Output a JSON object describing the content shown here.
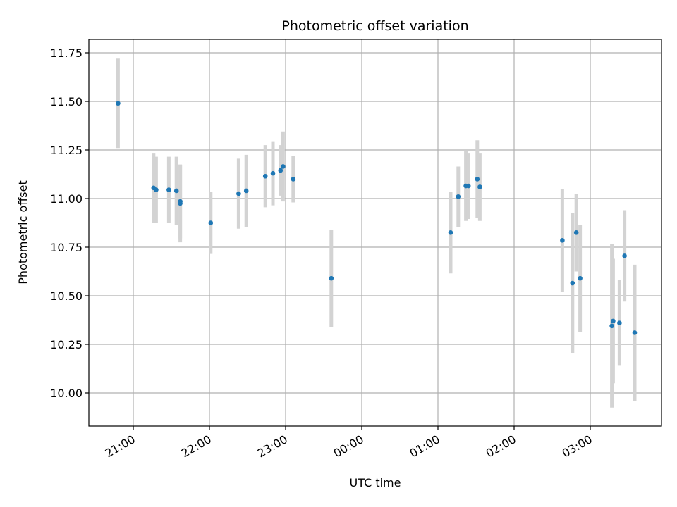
{
  "chart_data": {
    "type": "scatter",
    "title": "Photometric offset variation",
    "xlabel": "UTC time",
    "ylabel": "Photometric offset",
    "x_tick_labels": [
      "21:00",
      "22:00",
      "23:00",
      "00:00",
      "01:00",
      "02:00",
      "03:00"
    ],
    "y_tick_labels": [
      "10.00",
      "10.25",
      "10.50",
      "10.75",
      "11.00",
      "11.25",
      "11.50",
      "11.75"
    ],
    "y_ticks": [
      10.0,
      10.25,
      10.5,
      10.75,
      11.0,
      11.25,
      11.5,
      11.75
    ],
    "grid": true,
    "colors": {
      "point": "#1f77b4",
      "errorbar": "#d3d3d3",
      "grid": "#b0b0b0"
    },
    "points": [
      {
        "x": "20:48",
        "y": 11.49,
        "err": 0.23
      },
      {
        "x": "21:16",
        "y": 11.055,
        "err": 0.18
      },
      {
        "x": "21:18",
        "y": 11.045,
        "err": 0.17
      },
      {
        "x": "21:28",
        "y": 11.045,
        "err": 0.17
      },
      {
        "x": "21:34",
        "y": 11.04,
        "err": 0.175
      },
      {
        "x": "21:37",
        "y": 10.985,
        "err": 0.19
      },
      {
        "x": "21:37",
        "y": 10.975,
        "err": 0.2
      },
      {
        "x": "22:01",
        "y": 10.875,
        "err": 0.16
      },
      {
        "x": "22:23",
        "y": 11.025,
        "err": 0.18
      },
      {
        "x": "22:29",
        "y": 11.04,
        "err": 0.185
      },
      {
        "x": "22:44",
        "y": 11.115,
        "err": 0.16
      },
      {
        "x": "22:50",
        "y": 11.13,
        "err": 0.165
      },
      {
        "x": "22:56",
        "y": 11.145,
        "err": 0.13
      },
      {
        "x": "22:58",
        "y": 11.165,
        "err": 0.18
      },
      {
        "x": "23:06",
        "y": 11.1,
        "err": 0.12
      },
      {
        "x": "23:36",
        "y": 10.59,
        "err": 0.25
      },
      {
        "x": "01:10",
        "y": 10.825,
        "err": 0.21
      },
      {
        "x": "01:16",
        "y": 11.01,
        "err": 0.155
      },
      {
        "x": "01:22",
        "y": 11.065,
        "err": 0.18
      },
      {
        "x": "01:24",
        "y": 11.065,
        "err": 0.17
      },
      {
        "x": "01:31",
        "y": 11.1,
        "err": 0.2
      },
      {
        "x": "01:33",
        "y": 11.06,
        "err": 0.175
      },
      {
        "x": "02:38",
        "y": 10.785,
        "err": 0.265
      },
      {
        "x": "02:46",
        "y": 10.565,
        "err": 0.36
      },
      {
        "x": "02:49",
        "y": 10.825,
        "err": 0.2
      },
      {
        "x": "02:52",
        "y": 10.59,
        "err": 0.275
      },
      {
        "x": "03:17",
        "y": 10.345,
        "err": 0.42
      },
      {
        "x": "03:18",
        "y": 10.37,
        "err": 0.32
      },
      {
        "x": "03:23",
        "y": 10.36,
        "err": 0.22
      },
      {
        "x": "03:27",
        "y": 10.705,
        "err": 0.235
      },
      {
        "x": "03:35",
        "y": 10.31,
        "err": 0.35
      }
    ]
  }
}
